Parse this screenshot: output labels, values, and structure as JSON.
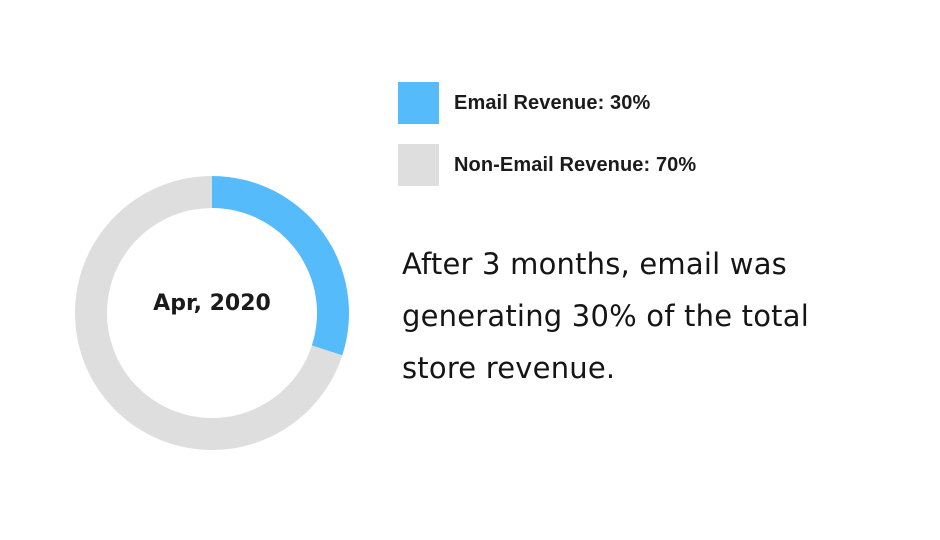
{
  "chart_data": {
    "type": "pie",
    "style": "donut",
    "center_label": "Apr, 2020",
    "slices": [
      {
        "label": "Email Revenue",
        "value": 30,
        "color": "#56bbfb"
      },
      {
        "label": "Non-Email Revenue",
        "value": 70,
        "color": "#dedede"
      }
    ],
    "legend_placement": "top-right"
  },
  "legend": {
    "items": [
      {
        "text": "Email Revenue: 30%",
        "color": "#56bbfb"
      },
      {
        "text": "Non-Email Revenue: 70%",
        "color": "#dedede"
      }
    ]
  },
  "description": {
    "line1": "After 3 months, email was",
    "line2": "generating 30% of the total",
    "line3": "store revenue."
  }
}
